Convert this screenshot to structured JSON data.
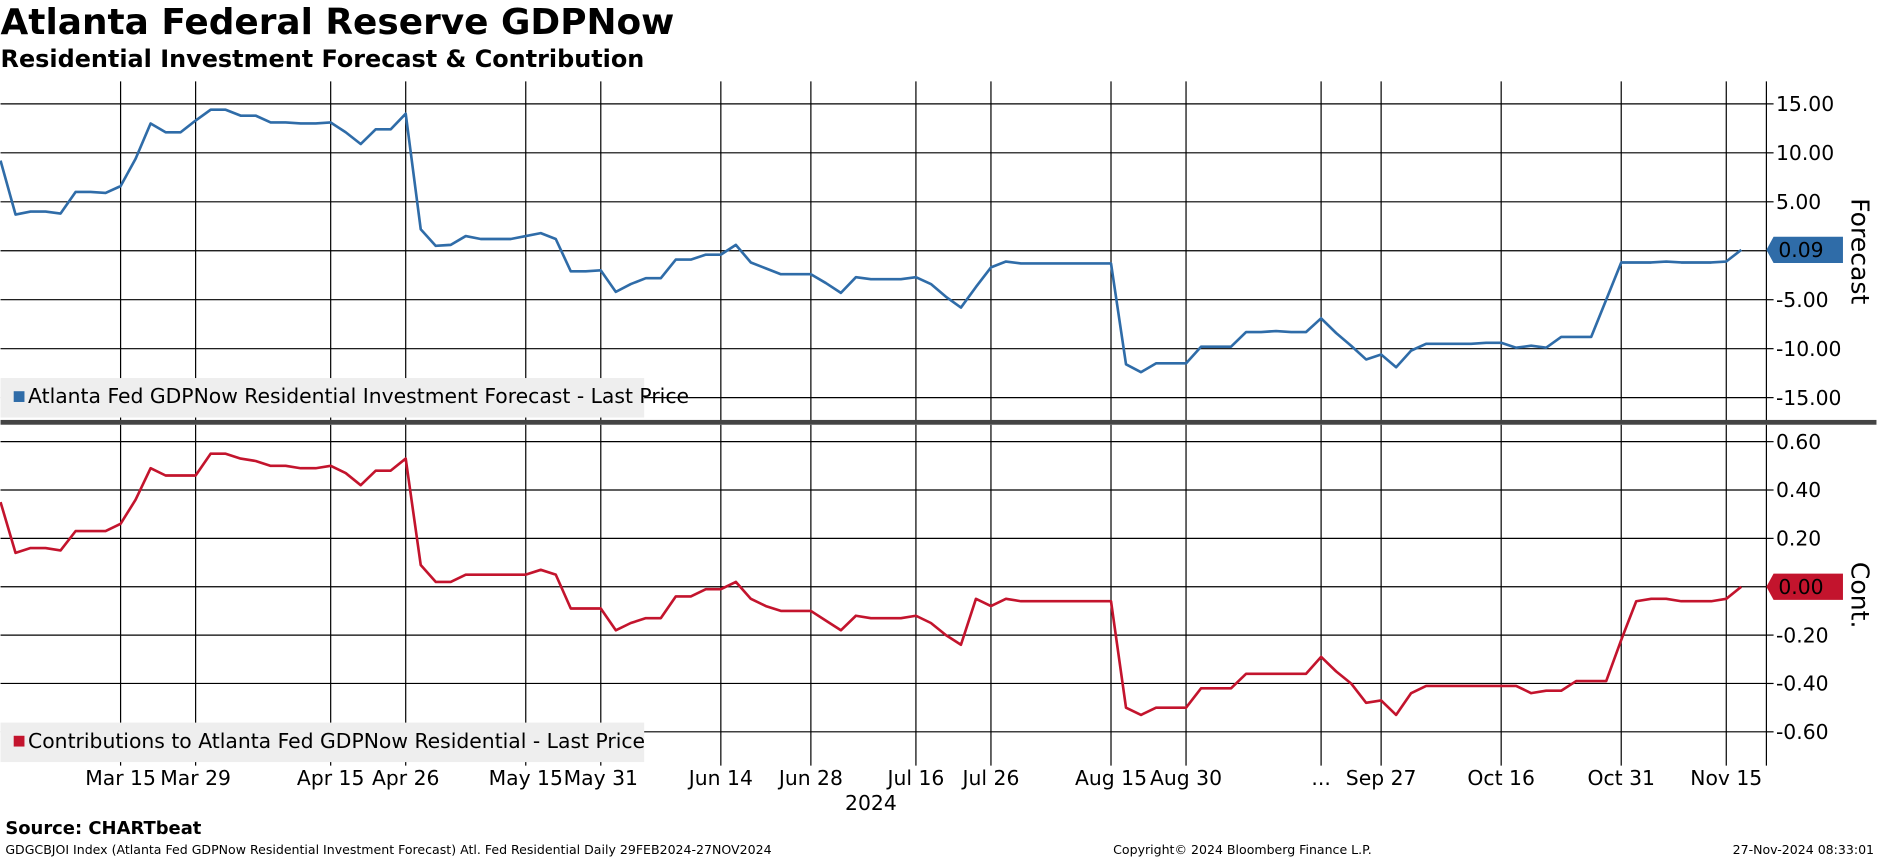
{
  "chart_data": [
    {
      "type": "line",
      "title": "Atlanta Federal Reserve GDPNow",
      "subtitle": "Residential Investment Forecast & Contribution",
      "y_label": "Forecast",
      "ylim": [
        -17.4,
        17.3
      ],
      "yticks": [
        {
          "value": 15,
          "label": "15.00"
        },
        {
          "value": 10,
          "label": "10.00"
        },
        {
          "value": 5,
          "label": "5.00"
        },
        {
          "value": 0,
          "label": "0.00"
        },
        {
          "value": -5,
          "label": "-5.00"
        },
        {
          "value": -10,
          "label": "-10.00"
        },
        {
          "value": -15,
          "label": "-15.00"
        }
      ],
      "grid": true,
      "legend": "lower left",
      "current_value_label": "0.09",
      "series": [
        {
          "name": "Atlanta Fed GDPNow Residential Investment Forecast - Last Price",
          "color": "#2f6ca8",
          "values": [
            9.2,
            3.7,
            4.0,
            4.0,
            3.8,
            6.0,
            6.0,
            5.9,
            6.6,
            9.4,
            13.0,
            12.1,
            12.1,
            13.3,
            14.4,
            14.4,
            13.8,
            13.8,
            13.1,
            13.1,
            13.0,
            13.0,
            13.1,
            12.1,
            10.9,
            12.4,
            12.4,
            14.0,
            2.2,
            0.5,
            0.6,
            1.5,
            1.2,
            1.2,
            1.2,
            1.5,
            1.8,
            1.2,
            -2.1,
            -2.1,
            -2.0,
            -4.2,
            -3.4,
            -2.8,
            -2.8,
            -0.9,
            -0.9,
            -0.4,
            -0.4,
            0.6,
            -1.2,
            -1.8,
            -2.4,
            -2.4,
            -2.4,
            -3.3,
            -4.3,
            -2.7,
            -2.9,
            -2.9,
            -2.9,
            -2.7,
            -3.4,
            -4.7,
            -5.8,
            -3.7,
            -1.7,
            -1.1,
            -1.3,
            -1.3,
            -1.3,
            -1.3,
            -1.3,
            -1.3,
            -1.3,
            -11.6,
            -12.4,
            -11.5,
            -11.5,
            -11.5,
            -9.8,
            -9.8,
            -9.8,
            -8.3,
            -8.3,
            -8.2,
            -8.3,
            -8.3,
            -6.9,
            -8.4,
            -9.7,
            -11.1,
            -10.6,
            -11.9,
            -10.2,
            -9.5,
            -9.5,
            -9.5,
            -9.5,
            -9.4,
            -9.4,
            -9.9,
            -9.7,
            -9.9,
            -8.8,
            -8.8,
            -8.8,
            -5.0,
            -1.2,
            -1.2,
            -1.2,
            -1.1,
            -1.2,
            -1.2,
            -1.2,
            -1.1,
            0.09
          ]
        }
      ]
    },
    {
      "type": "line",
      "y_label": "Cont.",
      "x_label": "2024",
      "ylim": [
        -0.74,
        0.67
      ],
      "yticks": [
        {
          "value": 0.6,
          "label": "0.60"
        },
        {
          "value": 0.4,
          "label": "0.40"
        },
        {
          "value": 0.2,
          "label": "0.20"
        },
        {
          "value": 0,
          "label": "0.00"
        },
        {
          "value": -0.2,
          "label": "-0.20"
        },
        {
          "value": -0.4,
          "label": "-0.40"
        },
        {
          "value": -0.6,
          "label": "-0.60"
        }
      ],
      "grid": true,
      "legend": "lower left",
      "current_value_label": "0.00",
      "categories": [
        null,
        null,
        null,
        null,
        null,
        null,
        null,
        null,
        "Mar 15",
        null,
        null,
        null,
        null,
        "Mar 29",
        null,
        null,
        null,
        null,
        null,
        null,
        null,
        null,
        "Apr 15",
        null,
        null,
        null,
        null,
        "Apr 26",
        null,
        null,
        null,
        null,
        null,
        null,
        null,
        "May 15",
        null,
        null,
        null,
        null,
        "May 31",
        null,
        null,
        null,
        null,
        null,
        null,
        null,
        "Jun 14",
        null,
        null,
        null,
        null,
        null,
        "Jun 28",
        null,
        null,
        null,
        null,
        null,
        null,
        "Jul 16",
        null,
        null,
        null,
        null,
        "Jul 26",
        null,
        null,
        null,
        null,
        null,
        null,
        null,
        "Aug 15",
        null,
        null,
        null,
        null,
        "Aug 30",
        null,
        null,
        null,
        null,
        null,
        null,
        null,
        null,
        "...",
        null,
        null,
        null,
        "Sep 27",
        null,
        null,
        null,
        null,
        null,
        null,
        null,
        "Oct 16",
        null,
        null,
        null,
        null,
        null,
        null,
        null,
        "Oct 31",
        null,
        null,
        null,
        null,
        null,
        null,
        "Nov 15",
        null
      ],
      "series": [
        {
          "name": "Contributions to Atlanta Fed GDPNow Residential - Last Price",
          "color": "#c3142d",
          "values": [
            0.35,
            0.14,
            0.16,
            0.16,
            0.15,
            0.23,
            0.23,
            0.23,
            0.26,
            0.36,
            0.49,
            0.46,
            0.46,
            0.46,
            0.55,
            0.55,
            0.53,
            0.52,
            0.5,
            0.5,
            0.49,
            0.49,
            0.5,
            0.47,
            0.42,
            0.48,
            0.48,
            0.53,
            0.09,
            0.02,
            0.02,
            0.05,
            0.05,
            0.05,
            0.05,
            0.05,
            0.07,
            0.05,
            -0.09,
            -0.09,
            -0.09,
            -0.18,
            -0.15,
            -0.13,
            -0.13,
            -0.04,
            -0.04,
            -0.01,
            -0.01,
            0.02,
            -0.05,
            -0.08,
            -0.1,
            -0.1,
            -0.1,
            -0.14,
            -0.18,
            -0.12,
            -0.13,
            -0.13,
            -0.13,
            -0.12,
            -0.15,
            -0.2,
            -0.24,
            -0.05,
            -0.08,
            -0.05,
            -0.06,
            -0.06,
            -0.06,
            -0.06,
            -0.06,
            -0.06,
            -0.06,
            -0.5,
            -0.53,
            -0.5,
            -0.5,
            -0.5,
            -0.42,
            -0.42,
            -0.42,
            -0.36,
            -0.36,
            -0.36,
            -0.36,
            -0.36,
            -0.29,
            -0.35,
            -0.4,
            -0.48,
            -0.47,
            -0.53,
            -0.44,
            -0.41,
            -0.41,
            -0.41,
            -0.41,
            -0.41,
            -0.41,
            -0.41,
            -0.44,
            -0.43,
            -0.43,
            -0.39,
            -0.39,
            -0.39,
            -0.22,
            -0.06,
            -0.05,
            -0.05,
            -0.06,
            -0.06,
            -0.06,
            -0.05,
            0
          ]
        }
      ]
    }
  ],
  "footer": {
    "source": "Source: CHARTbeat",
    "description": "GDGCBJOI Index (Atlanta Fed GDPNow Residential Investment Forecast) Atl. Fed Residential  Daily 29FEB2024-27NOV2024",
    "copyright": "Copyright© 2024 Bloomberg Finance L.P.",
    "timestamp": "27-Nov-2024 08:33:01"
  }
}
